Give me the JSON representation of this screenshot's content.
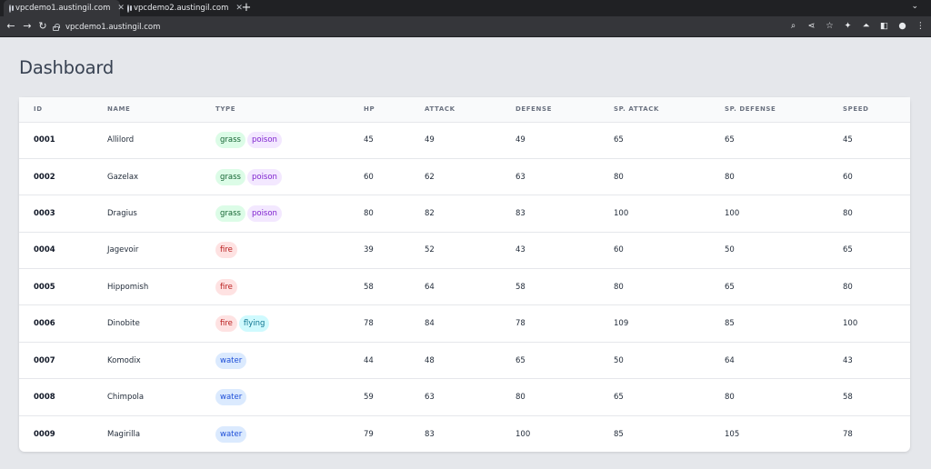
{
  "browser": {
    "tabs": [
      {
        "title": "vpcdemo1.austingil.com",
        "active": true
      },
      {
        "title": "vpcdemo2.austingil.com",
        "active": false
      }
    ],
    "new_tab": "+",
    "tab_menu": "⌄",
    "nav": {
      "back": "←",
      "forward": "→",
      "reload": "↻"
    },
    "url": "vpcdemo1.austingil.com",
    "toolbar_icons": {
      "zoom": "⌕",
      "share": "⋖",
      "bookmark": "☆",
      "extensions": "✦",
      "ext_a": "⏶",
      "sidepanel": "◧",
      "profile": "●",
      "menu": "⋮"
    }
  },
  "page": {
    "title": "Dashboard"
  },
  "table": {
    "headers": {
      "id": "ID",
      "name": "NAME",
      "type": "TYPE",
      "hp": "HP",
      "attack": "ATTACK",
      "defense": "DEFENSE",
      "sp_attack": "SP. ATTACK",
      "sp_defense": "SP. DEFENSE",
      "speed": "SPEED"
    },
    "rows": [
      {
        "id": "0001",
        "name": "Allilord",
        "types": [
          "grass",
          "poison"
        ],
        "hp": "45",
        "attack": "49",
        "defense": "49",
        "sp_attack": "65",
        "sp_defense": "65",
        "speed": "45"
      },
      {
        "id": "0002",
        "name": "Gazelax",
        "types": [
          "grass",
          "poison"
        ],
        "hp": "60",
        "attack": "62",
        "defense": "63",
        "sp_attack": "80",
        "sp_defense": "80",
        "speed": "60"
      },
      {
        "id": "0003",
        "name": "Dragius",
        "types": [
          "grass",
          "poison"
        ],
        "hp": "80",
        "attack": "82",
        "defense": "83",
        "sp_attack": "100",
        "sp_defense": "100",
        "speed": "80"
      },
      {
        "id": "0004",
        "name": "Jagevoir",
        "types": [
          "fire"
        ],
        "hp": "39",
        "attack": "52",
        "defense": "43",
        "sp_attack": "60",
        "sp_defense": "50",
        "speed": "65"
      },
      {
        "id": "0005",
        "name": "Hippomish",
        "types": [
          "fire"
        ],
        "hp": "58",
        "attack": "64",
        "defense": "58",
        "sp_attack": "80",
        "sp_defense": "65",
        "speed": "80"
      },
      {
        "id": "0006",
        "name": "Dinobite",
        "types": [
          "fire",
          "flying"
        ],
        "hp": "78",
        "attack": "84",
        "defense": "78",
        "sp_attack": "109",
        "sp_defense": "85",
        "speed": "100"
      },
      {
        "id": "0007",
        "name": "Komodix",
        "types": [
          "water"
        ],
        "hp": "44",
        "attack": "48",
        "defense": "65",
        "sp_attack": "50",
        "sp_defense": "64",
        "speed": "43"
      },
      {
        "id": "0008",
        "name": "Chimpola",
        "types": [
          "water"
        ],
        "hp": "59",
        "attack": "63",
        "defense": "80",
        "sp_attack": "65",
        "sp_defense": "80",
        "speed": "58"
      },
      {
        "id": "0009",
        "name": "Magirilla",
        "types": [
          "water"
        ],
        "hp": "79",
        "attack": "83",
        "defense": "100",
        "sp_attack": "85",
        "sp_defense": "105",
        "speed": "78"
      }
    ]
  },
  "type_colors": {
    "grass": {
      "bg": "#dcfce7",
      "fg": "#166534"
    },
    "poison": {
      "bg": "#f3e8ff",
      "fg": "#7e22ce"
    },
    "fire": {
      "bg": "#fee2e2",
      "fg": "#b91c1c"
    },
    "flying": {
      "bg": "#cffafe",
      "fg": "#0e7490"
    },
    "water": {
      "bg": "#dbeafe",
      "fg": "#1d4ed8"
    }
  }
}
